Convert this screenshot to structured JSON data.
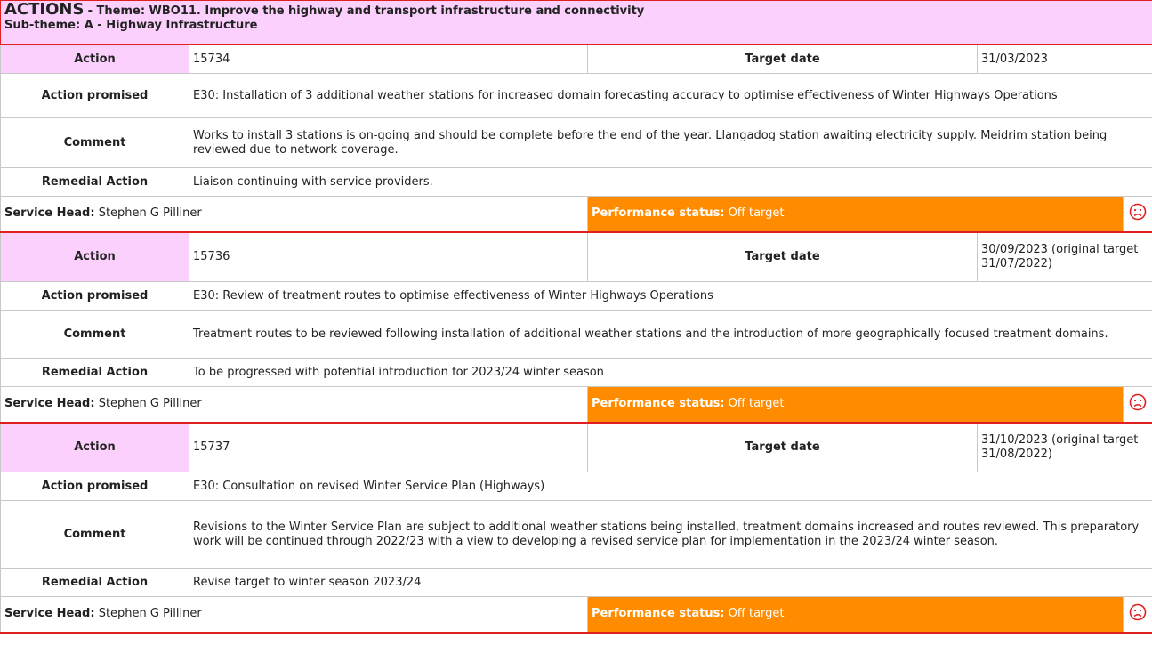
{
  "header": {
    "title": "ACTIONS",
    "theme": "- Theme: WBO11. Improve the highway and transport infrastructure and connectivity",
    "subtheme": "Sub-theme: A - Highway Infrastructure"
  },
  "labels": {
    "action": "Action",
    "target_date": "Target date",
    "promised": "Action promised",
    "comment": "Comment",
    "remedial": "Remedial Action",
    "service_head": "Service Head:",
    "status": "Performance status:"
  },
  "actions": [
    {
      "id": "15734",
      "target_date": "31/03/2023",
      "promised": "E30: Installation of 3 additional weather stations for increased domain forecasting accuracy to optimise effectiveness of Winter Highways Operations",
      "comment": "Works to install 3 stations is on-going and should be complete before the end of the year. Llangadog station awaiting electricity supply. Meidrim station being reviewed due to network coverage.",
      "remedial": "Liaison continuing with service providers.",
      "service_head": "Stephen G Pilliner",
      "status": "Off target"
    },
    {
      "id": "15736",
      "target_date": "30/09/2023 (original target 31/07/2022)",
      "promised": "E30: Review of treatment routes to optimise effectiveness of Winter Highways Operations",
      "comment": "Treatment routes to be reviewed following installation of additional weather stations and the introduction of more geographically focused treatment domains.",
      "remedial": "To be progressed with potential introduction for 2023/24 winter season",
      "service_head": "Stephen G Pilliner",
      "status": "Off target"
    },
    {
      "id": "15737",
      "target_date": "31/10/2023 (original target 31/08/2022)",
      "promised": "E30: Consultation on revised Winter Service Plan (Highways)",
      "comment": "Revisions to the Winter Service Plan are subject to additional weather stations being installed, treatment domains increased and routes reviewed. This preparatory work will be continued through 2022/23 with a view to developing a revised service plan for implementation in the 2023/24 winter season.",
      "remedial": "Revise target to winter season 2023/24",
      "service_head": "Stephen G Pilliner",
      "status": "Off target"
    }
  ]
}
